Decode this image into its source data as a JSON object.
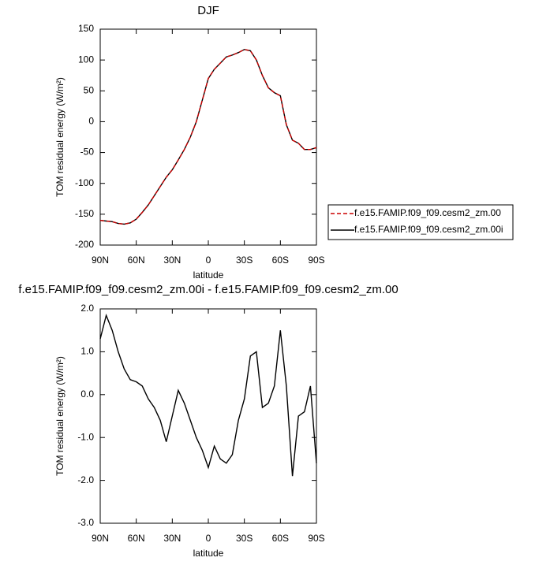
{
  "chart_data": [
    {
      "type": "line",
      "title": "DJF",
      "x_label": "latitude",
      "y_label": "TOM residual energy (W/m²)",
      "x": [
        90,
        85,
        80,
        75,
        70,
        65,
        60,
        55,
        50,
        45,
        40,
        35,
        30,
        25,
        20,
        15,
        10,
        5,
        0,
        -5,
        -10,
        -15,
        -20,
        -25,
        -30,
        -35,
        -40,
        -45,
        -50,
        -55,
        -60,
        -65,
        -70,
        -75,
        -80,
        -85,
        -90
      ],
      "series": [
        {
          "name": "f.e15.FAMIP.f09_f09.cesm2_zm.00",
          "color": "#cc0000",
          "line_style": "dashed",
          "values": [
            -160,
            -161,
            -162,
            -165,
            -166,
            -164,
            -158,
            -147,
            -135,
            -120,
            -105,
            -90,
            -78,
            -62,
            -45,
            -25,
            0,
            35,
            70,
            85,
            95,
            105,
            108,
            112,
            117,
            115,
            100,
            75,
            55,
            47,
            42,
            -5,
            -30,
            -35,
            -45,
            -45,
            -42
          ]
        },
        {
          "name": "f.e15.FAMIP.f09_f09.cesm2_zm.00i",
          "color": "#000000",
          "line_style": "solid",
          "values": [
            -160,
            -161,
            -162,
            -165,
            -166,
            -164,
            -158,
            -147,
            -135,
            -120,
            -105,
            -90,
            -78,
            -62,
            -45,
            -25,
            0,
            35,
            70,
            85,
            95,
            105,
            108,
            112,
            117,
            115,
            100,
            75,
            55,
            47,
            42,
            -5,
            -30,
            -35,
            -45,
            -45,
            -42
          ]
        }
      ],
      "xlim": [
        90,
        -90
      ],
      "xticks": [
        {
          "value": 90,
          "label": "90N"
        },
        {
          "value": 60,
          "label": "60N"
        },
        {
          "value": 30,
          "label": "30N"
        },
        0,
        {
          "value": -30,
          "label": "30S"
        },
        {
          "value": -60,
          "label": "60S"
        },
        {
          "value": -90,
          "label": "90S"
        }
      ],
      "ylim": [
        -200,
        150
      ],
      "yticks": [
        150,
        100,
        50,
        0,
        -50,
        -100,
        -150,
        -200
      ],
      "legend": true
    },
    {
      "type": "line",
      "title": "f.e15.FAMIP.f09_f09.cesm2_zm.00i - f.e15.FAMIP.f09_f09.cesm2_zm.00",
      "x_label": "latitude",
      "y_label": "TOM residual energy (W/m²)",
      "x": [
        90,
        85,
        80,
        75,
        70,
        65,
        60,
        55,
        50,
        45,
        40,
        35,
        30,
        25,
        20,
        15,
        10,
        5,
        0,
        -5,
        -10,
        -15,
        -20,
        -25,
        -30,
        -35,
        -40,
        -45,
        -50,
        -55,
        -60,
        -65,
        -70,
        -75,
        -80,
        -85,
        -90
      ],
      "series": [
        {
          "color": "#000000",
          "line_style": "solid",
          "values": [
            1.3,
            1.85,
            1.5,
            1.0,
            0.6,
            0.35,
            0.3,
            0.2,
            -0.1,
            -0.3,
            -0.6,
            -1.1,
            -0.5,
            0.1,
            -0.2,
            -0.6,
            -1.0,
            -1.3,
            -1.7,
            -1.2,
            -1.5,
            -1.6,
            -1.4,
            -0.6,
            -0.1,
            0.9,
            1.0,
            -0.3,
            -0.2,
            0.2,
            1.5,
            0.2,
            -1.9,
            -0.5,
            -0.4,
            0.2,
            -1.6
          ]
        }
      ],
      "xlim": [
        90,
        -90
      ],
      "xticks": [
        {
          "value": 90,
          "label": "90N"
        },
        {
          "value": 60,
          "label": "60N"
        },
        {
          "value": 30,
          "label": "30N"
        },
        0,
        {
          "value": -30,
          "label": "30S"
        },
        {
          "value": -60,
          "label": "60S"
        },
        {
          "value": -90,
          "label": "90S"
        }
      ],
      "ylim": [
        -3,
        2
      ],
      "yticks": [
        {
          "value": 2,
          "label": "2.0"
        },
        {
          "value": 1,
          "label": "1.0"
        },
        {
          "value": 0,
          "label": "0.0"
        },
        {
          "value": -1,
          "label": "-1.0"
        },
        {
          "value": -2,
          "label": "-2.0"
        },
        {
          "value": -3,
          "label": "-3.0"
        }
      ],
      "legend": false
    }
  ]
}
